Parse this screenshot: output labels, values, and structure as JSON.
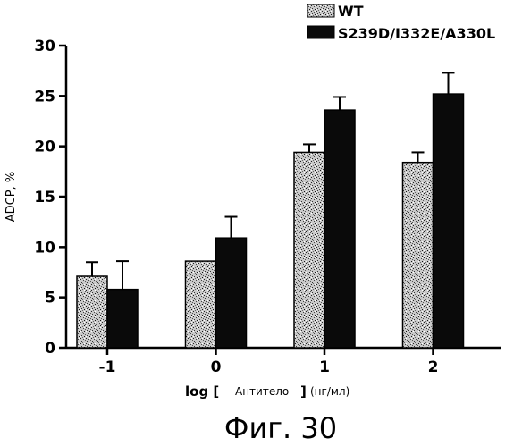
{
  "chart_data": {
    "type": "bar",
    "title": "",
    "xlabel_parts": [
      "log [",
      "Антитело",
      "]",
      "(нг/мл)"
    ],
    "ylabel": "ADCP, %",
    "categories": [
      "-1",
      "0",
      "1",
      "2"
    ],
    "ylim": [
      0,
      30
    ],
    "yticks": [
      "0",
      "5",
      "10",
      "15",
      "20",
      "25",
      "30"
    ],
    "legend_placement": "top-right",
    "series": [
      {
        "name": "WT",
        "values": [
          7.1,
          8.6,
          19.4,
          18.4
        ],
        "errors": [
          1.4,
          0.0,
          0.8,
          1.0
        ],
        "fill": "stipple",
        "color": "#bdbdbd"
      },
      {
        "name": "S239D/I332E/A330L",
        "values": [
          5.8,
          10.9,
          23.6,
          25.2
        ],
        "errors": [
          2.8,
          2.1,
          1.3,
          2.1
        ],
        "fill": "solid",
        "color": "#0a0a0a"
      }
    ]
  },
  "caption": "Фиг. 30"
}
